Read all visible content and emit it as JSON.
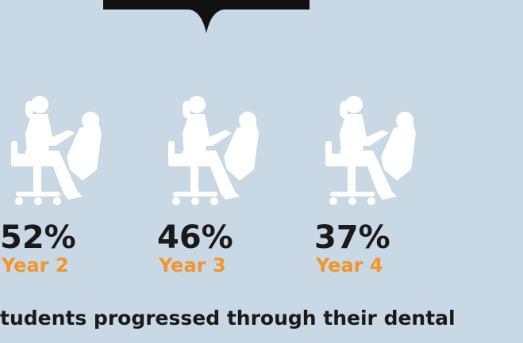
{
  "chart_data": {
    "type": "pictogram",
    "categories": [
      "Year 2",
      "Year 3",
      "Year 4"
    ],
    "values": [
      52,
      46,
      37
    ],
    "value_labels": [
      "52%",
      "46%",
      "37%"
    ],
    "color": "#2b8fcb",
    "label_color": "#f2952b",
    "caption": "tudents progressed through their dental"
  }
}
